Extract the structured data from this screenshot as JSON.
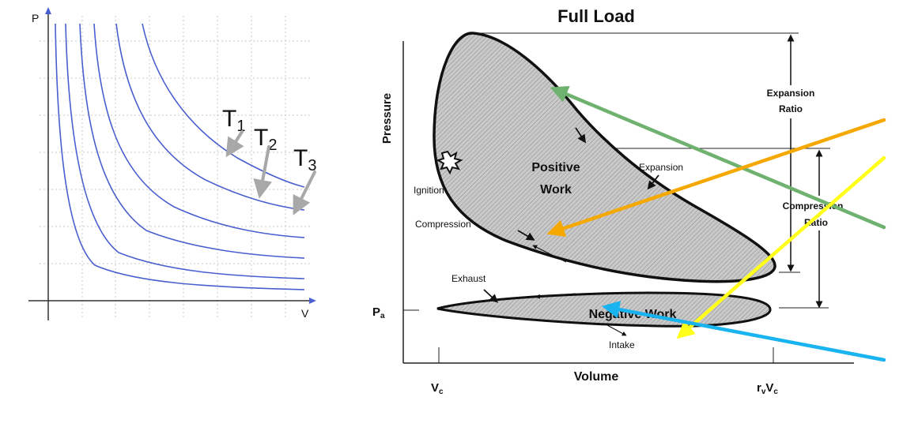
{
  "left_plot": {
    "y_axis_label": "P",
    "x_axis_label": "V",
    "temperature_labels": [
      {
        "base": "T",
        "sub": "1"
      },
      {
        "base": "T",
        "sub": "2"
      },
      {
        "base": "T",
        "sub": "3"
      }
    ],
    "curve_color": "#4a5fcf",
    "arrow_color": "#a8a8a8"
  },
  "right_diagram": {
    "title": "Full Load",
    "y_axis_label": "Pressure",
    "x_axis_label": "Volume",
    "pa_label": {
      "base": "P",
      "sub": "a"
    },
    "vc_label": {
      "base": "V",
      "sub": "c"
    },
    "rvvc_label": {
      "pre": "r",
      "sub1": "v",
      "mid": "V",
      "sub2": "c"
    },
    "region_labels": {
      "positive_work_line1": "Positive",
      "positive_work_line2": "Work",
      "negative_work": "Negative Work"
    },
    "process_labels": {
      "ignition": "Ignition",
      "compression": "Compression",
      "expansion": "Expansion",
      "exhaust": "Exhaust",
      "intake": "Intake"
    },
    "ratio_labels": {
      "expansion_line1": "Expansion",
      "expansion_line2": "Ratio",
      "compression_line1": "Compression",
      "compression_line2": "Ratio"
    },
    "pointer_colors": {
      "green": "#6fb26f",
      "orange": "#f5a800",
      "yellow": "#ffff1a",
      "blue": "#19b3f0"
    }
  }
}
